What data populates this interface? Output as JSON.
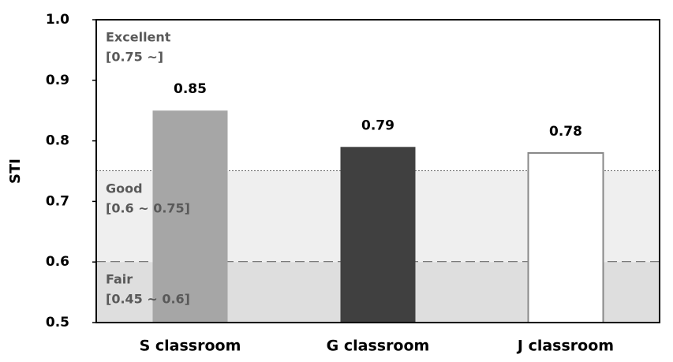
{
  "chart_data": {
    "type": "bar",
    "y_label": "STI",
    "categories": [
      "S classroom",
      "G classroom",
      "J classroom"
    ],
    "values": [
      0.85,
      0.79,
      0.78
    ],
    "colors": [
      "#a6a6a6",
      "#404040",
      "#ffffff"
    ],
    "ylim": [
      0.5,
      1.0
    ],
    "yticks": [
      0.5,
      0.6,
      0.7,
      0.8,
      0.9,
      {
        "value": 1.0,
        "label": "1.0"
      }
    ],
    "zones": [
      {
        "label": "Excellent",
        "range_label": "[0.75 ~]",
        "threshold": 0.75,
        "color": "#ffffff",
        "line_style": "dotted"
      },
      {
        "label": "Good",
        "range_label": "[0.6 ~ 0.75]",
        "threshold": 0.6,
        "color": "#efefef",
        "line_style": "dashed"
      },
      {
        "label": "Fair",
        "range_label": "[0.45 ~ 0.6]",
        "threshold": 0.45,
        "color": "#dedede",
        "line_style": "dashed"
      }
    ]
  }
}
